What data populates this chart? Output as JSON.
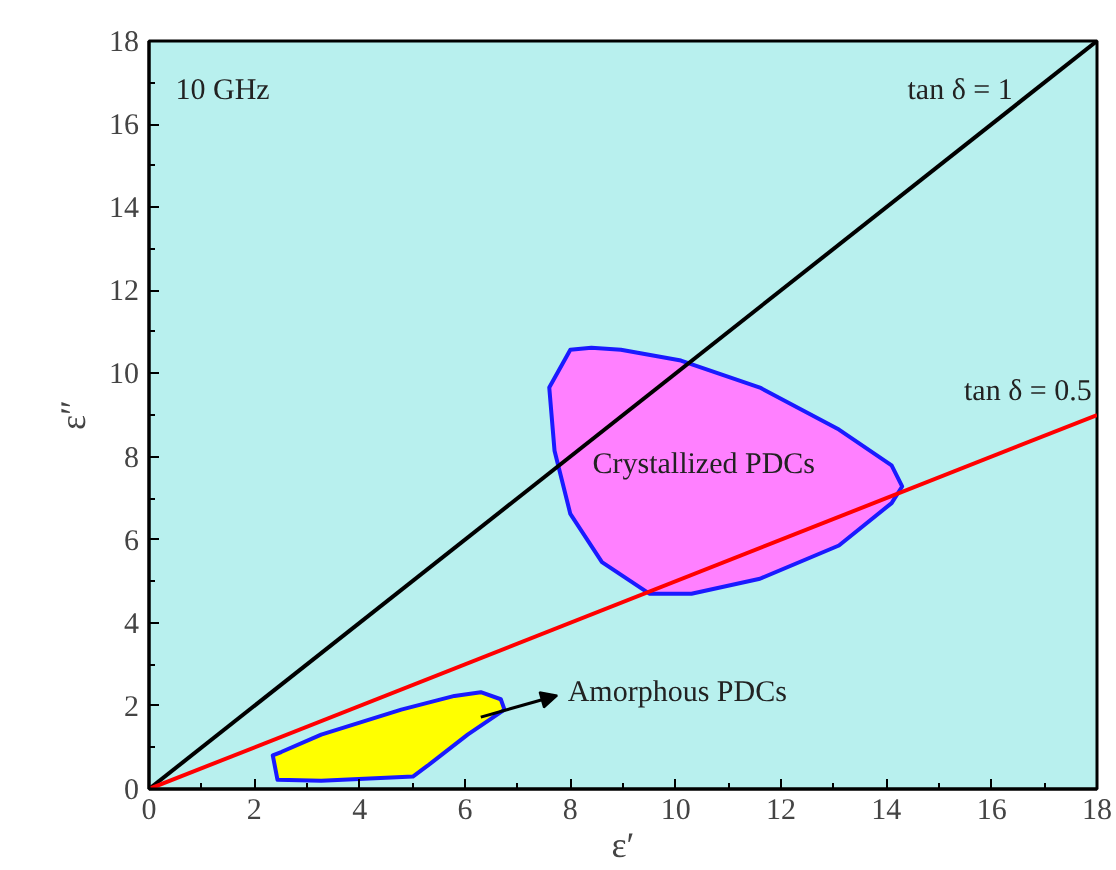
{
  "chart_data": {
    "type": "line",
    "xlabel": "ε′",
    "ylabel": "ε″",
    "xlim": [
      0,
      18
    ],
    "ylim": [
      0,
      18
    ],
    "xticks": [
      0,
      2,
      4,
      6,
      8,
      10,
      12,
      14,
      16,
      18
    ],
    "yticks": [
      0,
      2,
      4,
      6,
      8,
      10,
      12,
      14,
      16,
      18
    ],
    "grid": false,
    "series": [
      {
        "type": "area",
        "name": "Crystallized PDCs",
        "color": "#ff80ff",
        "x": [
          8.4,
          8.0,
          7.6,
          7.7,
          8.0,
          8.6,
          9.5,
          10.3,
          11.6,
          13.1,
          14.1,
          14.3,
          14.1,
          13.1,
          11.6,
          10.1,
          8.96
        ],
        "values": [
          10.62,
          10.57,
          9.66,
          8.14,
          6.62,
          5.46,
          4.7,
          4.7,
          5.06,
          5.86,
          6.88,
          7.28,
          7.79,
          8.65,
          9.66,
          10.31,
          10.57
        ]
      },
      {
        "type": "area",
        "color": "#ffff00",
        "x": [
          2.35,
          2.44,
          3.27,
          5.01,
          5.29,
          6.05,
          6.75,
          6.68,
          6.3,
          5.8,
          4.79,
          3.27,
          2.51
        ],
        "values": [
          0.81,
          0.22,
          0.2,
          0.3,
          0.56,
          1.31,
          1.91,
          2.16,
          2.33,
          2.24,
          1.91,
          1.31,
          0.89
        ]
      },
      {
        "name": "tan δ = 1",
        "color": "#000000",
        "x": [
          0,
          18
        ],
        "values": [
          0,
          18
        ]
      },
      {
        "name": "tan δ = 0.5",
        "color": "#ff0000",
        "x": [
          0,
          18
        ],
        "values": [
          0,
          9
        ]
      }
    ],
    "annotations": [
      "10 GHz",
      {
        "text": "Amorphous PDCs",
        "x": 6.75,
        "y": 1.91
      }
    ]
  }
}
